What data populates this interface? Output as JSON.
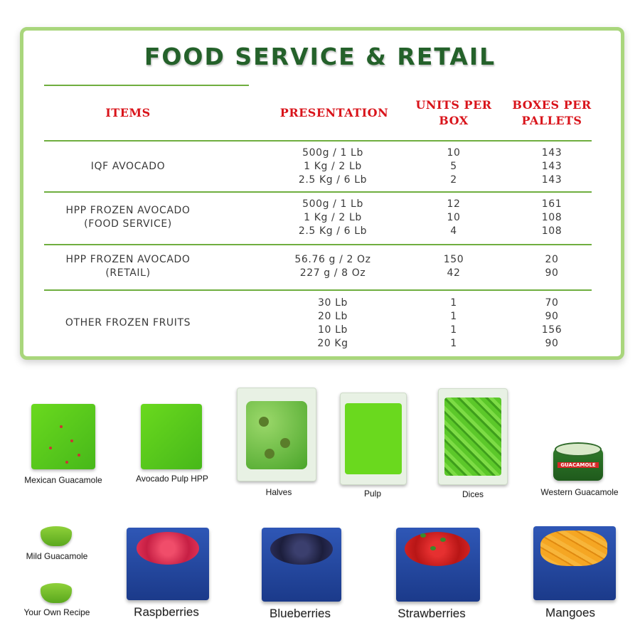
{
  "title": "FOOD SERVICE & RETAIL",
  "headers": {
    "items": "ITEMS",
    "presentation": "PRESENTATION",
    "units_line1": "UNITS PER",
    "units_line2": "BOX",
    "boxes_line1": "BOXES PER",
    "boxes_line2": "PALLETS"
  },
  "rows": [
    {
      "item": [
        "IQF AVOCADO"
      ],
      "presentation": [
        "500g / 1 Lb",
        "1 Kg / 2 Lb",
        "2.5 Kg / 6 Lb"
      ],
      "units": [
        "10",
        "5",
        "2"
      ],
      "boxes": [
        "143",
        "143",
        "143"
      ]
    },
    {
      "item": [
        "HPP FROZEN AVOCADO",
        "(FOOD SERVICE)"
      ],
      "presentation": [
        "500g / 1 Lb",
        "1 Kg / 2 Lb",
        "2.5 Kg / 6 Lb"
      ],
      "units": [
        "12",
        "10",
        "4"
      ],
      "boxes": [
        "161",
        "108",
        "108"
      ]
    },
    {
      "item": [
        "HPP FROZEN AVOCADO",
        "(RETAIL)"
      ],
      "presentation": [
        "56.76 g / 2 Oz",
        "227 g / 8 Oz"
      ],
      "units": [
        "150",
        "42"
      ],
      "boxes": [
        "20",
        "90"
      ]
    },
    {
      "item": [
        "OTHER FROZEN FRUITS"
      ],
      "presentation": [
        "30 Lb",
        "20 Lb",
        "10 Lb",
        "20 Kg"
      ],
      "units": [
        "1",
        "1",
        "1",
        "1"
      ],
      "boxes": [
        "70",
        "90",
        "156",
        "90"
      ]
    }
  ],
  "products": {
    "mexican_guacamole": "Mexican Guacamole",
    "avocado_pulp_hpp": "Avocado Pulp HPP",
    "halves": "Halves",
    "pulp": "Pulp",
    "dices": "Dices",
    "western_guacamole": "Western Guacamole",
    "western_guacamole_lid": "GUACAMOLE",
    "mild_guacamole": "Mild Guacamole",
    "your_own_recipe": "Your Own Recipe",
    "raspberries": "Raspberries",
    "blueberries": "Blueberries",
    "strawberries": "Strawberries",
    "mangoes": "Mangoes"
  },
  "colors": {
    "title": "#24612a",
    "header": "#d9141b",
    "rule": "#6fae3f",
    "border": "#a9d67c"
  }
}
